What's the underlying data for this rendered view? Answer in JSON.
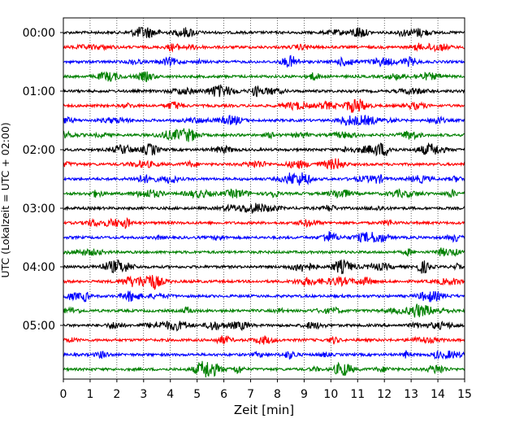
{
  "chart_data": {
    "type": "line",
    "title": "",
    "xlabel": "Zeit  [min]",
    "ylabel": "UTC (Lokalzeit = UTC + 02:00)",
    "xlim": [
      0,
      15
    ],
    "x_ticks": [
      0,
      1,
      2,
      3,
      4,
      5,
      6,
      7,
      8,
      9,
      10,
      11,
      12,
      13,
      14,
      15
    ],
    "x_tick_labels": [
      "0",
      "1",
      "2",
      "3",
      "4",
      "5",
      "6",
      "7",
      "8",
      "9",
      "10",
      "11",
      "12",
      "13",
      "14",
      "15"
    ],
    "y_tick_labels": [
      "00:00",
      "01:00",
      "02:00",
      "03:00",
      "04:00",
      "05:00"
    ],
    "grid": "x-dotted",
    "trace_interval_min": 15,
    "traces_per_hour": 4,
    "series": [
      {
        "start": "00:00",
        "color": "#000000"
      },
      {
        "start": "00:15",
        "color": "#ff0000"
      },
      {
        "start": "00:30",
        "color": "#0000ff"
      },
      {
        "start": "00:45",
        "color": "#008000"
      },
      {
        "start": "01:00",
        "color": "#000000"
      },
      {
        "start": "01:15",
        "color": "#ff0000"
      },
      {
        "start": "01:30",
        "color": "#0000ff"
      },
      {
        "start": "01:45",
        "color": "#008000"
      },
      {
        "start": "02:00",
        "color": "#000000"
      },
      {
        "start": "02:15",
        "color": "#ff0000"
      },
      {
        "start": "02:30",
        "color": "#0000ff"
      },
      {
        "start": "02:45",
        "color": "#008000"
      },
      {
        "start": "03:00",
        "color": "#000000"
      },
      {
        "start": "03:15",
        "color": "#ff0000"
      },
      {
        "start": "03:30",
        "color": "#0000ff"
      },
      {
        "start": "03:45",
        "color": "#008000"
      },
      {
        "start": "04:00",
        "color": "#000000"
      },
      {
        "start": "04:15",
        "color": "#ff0000"
      },
      {
        "start": "04:30",
        "color": "#0000ff"
      },
      {
        "start": "04:45",
        "color": "#008000"
      },
      {
        "start": "05:00",
        "color": "#000000"
      },
      {
        "start": "05:15",
        "color": "#ff0000"
      },
      {
        "start": "05:30",
        "color": "#0000ff"
      },
      {
        "start": "05:45",
        "color": "#008000"
      }
    ]
  }
}
